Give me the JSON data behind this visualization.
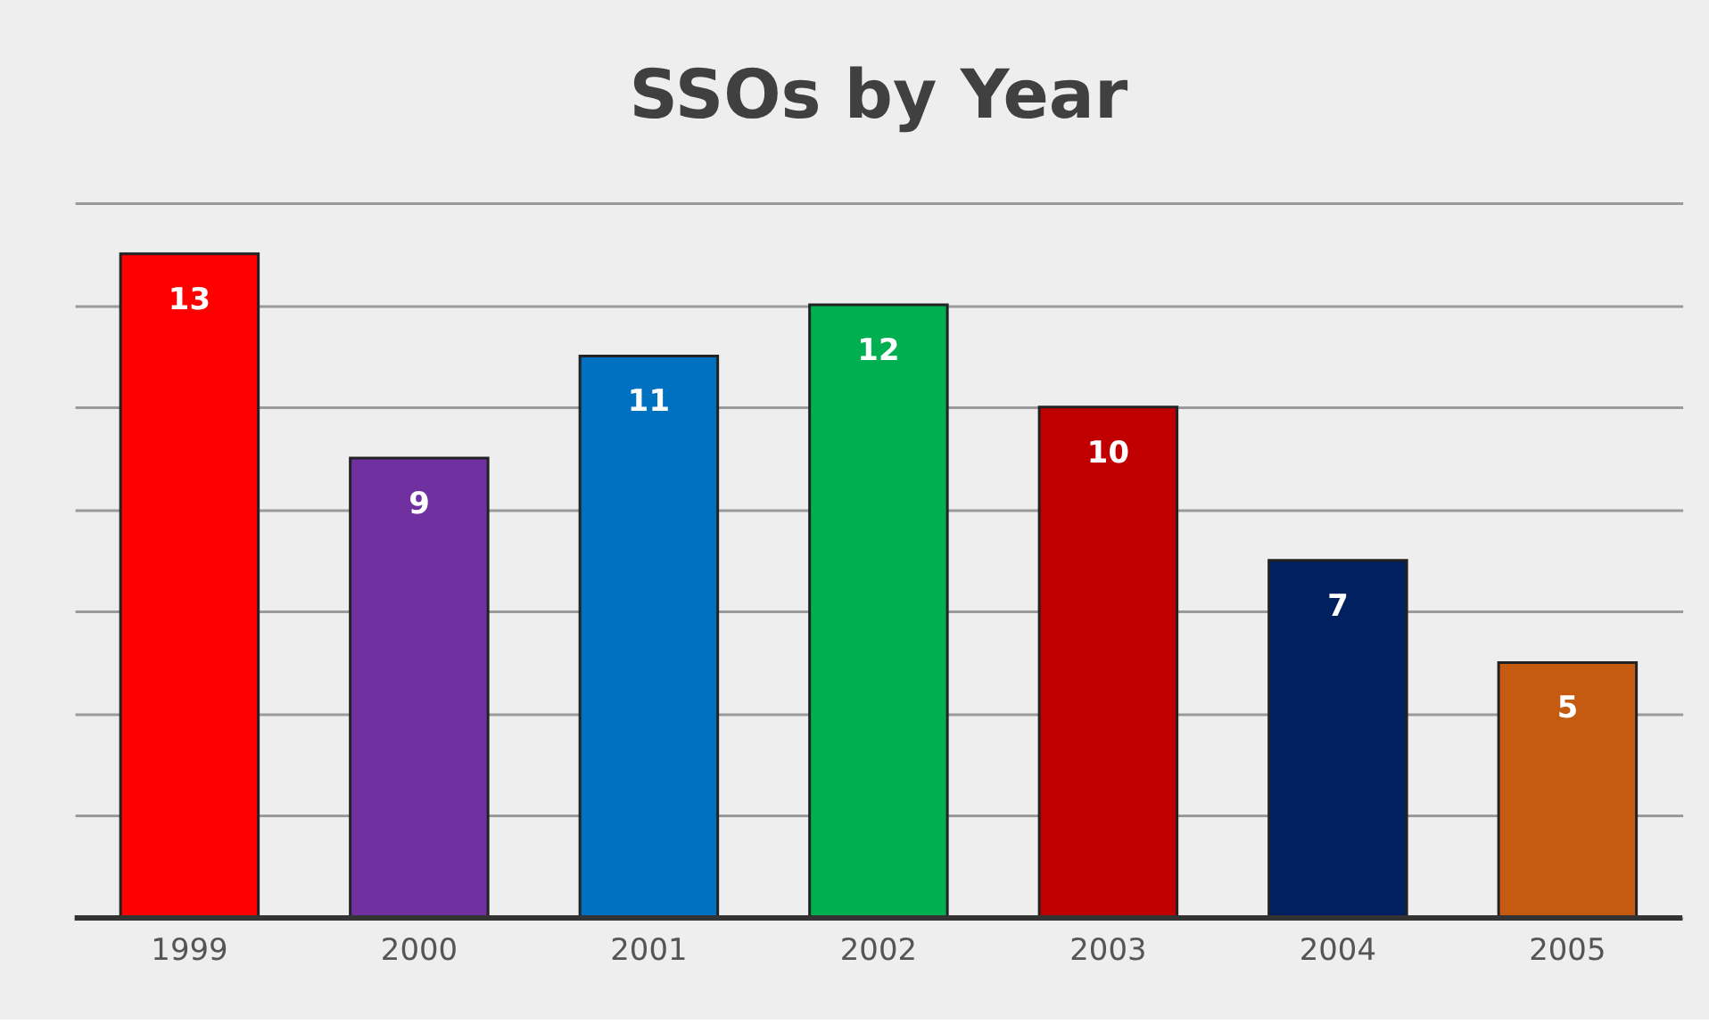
{
  "chart_data": {
    "type": "bar",
    "title": "SSOs by Year",
    "categories": [
      "1999",
      "2000",
      "2001",
      "2002",
      "2003",
      "2004",
      "2005"
    ],
    "values": [
      13,
      9,
      11,
      12,
      10,
      7,
      5
    ],
    "colors": [
      "#ff0000",
      "#7030a0",
      "#0070c0",
      "#00b050",
      "#c00000",
      "#002060",
      "#c55a11"
    ],
    "ylim": [
      0,
      14
    ],
    "grid": "y",
    "tick_labels": "x",
    "data_labels": true
  }
}
